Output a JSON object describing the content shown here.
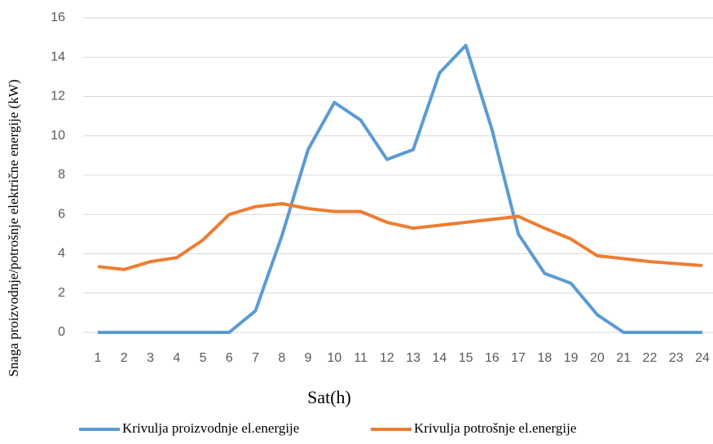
{
  "chart_data": {
    "type": "line",
    "y_label": "Snaga proizvodnje/potrošnje električne  energije  (kW)",
    "x_label": "Sat(h)",
    "categories": [
      "1",
      "2",
      "3",
      "4",
      "5",
      "6",
      "7",
      "8",
      "9",
      "10",
      "11",
      "12",
      "13",
      "14",
      "15",
      "16",
      "17",
      "18",
      "19",
      "20",
      "21",
      "22",
      "23",
      "24"
    ],
    "series": [
      {
        "name": "Krivulja proizvodnje el.energije",
        "color": "#5b9bd5",
        "values": [
          0,
          0,
          0,
          0,
          0,
          0,
          1.1,
          4.9,
          9.3,
          11.7,
          10.8,
          8.8,
          9.3,
          13.2,
          14.6,
          10.3,
          5.0,
          3.0,
          2.5,
          0.9,
          0,
          0,
          0,
          0
        ]
      },
      {
        "name": "Krivulja potrošnje el.energije",
        "color": "#ed7d31",
        "values": [
          3.35,
          3.2,
          3.6,
          3.8,
          4.7,
          6.0,
          6.4,
          6.55,
          6.3,
          6.15,
          6.15,
          5.6,
          5.3,
          5.45,
          5.6,
          5.75,
          5.9,
          5.3,
          4.75,
          3.9,
          3.75,
          3.6,
          3.5,
          3.4
        ]
      }
    ],
    "ylim": [
      0,
      16
    ],
    "yticks": [
      0,
      2,
      4,
      6,
      8,
      10,
      12,
      14,
      16
    ],
    "grid": true
  }
}
